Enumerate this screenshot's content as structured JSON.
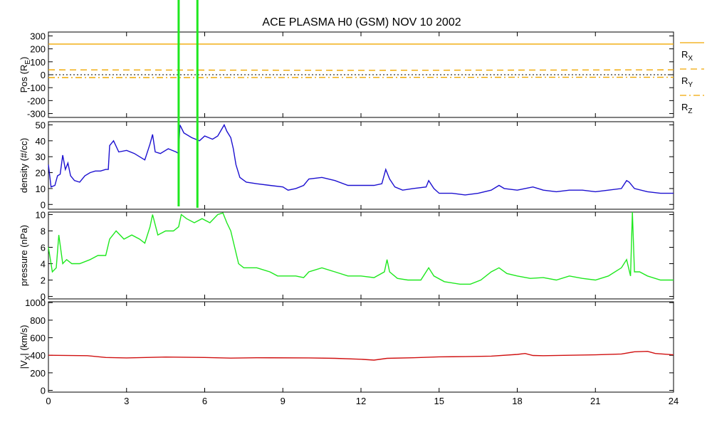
{
  "title": "ACE PLASMA H0 (GSM)   NOV 10 2002",
  "colors": {
    "position": "#f0a800",
    "density": "#1c10d0",
    "pressure": "#1ee81e",
    "velocity": "#d01010",
    "zero_line": "#000000"
  },
  "chart_data": [
    {
      "id": "pos",
      "type": "line",
      "ylabel_main": "Pos (R",
      "ylabel_sub": "E",
      "ylabel_end": ")",
      "ylim": [
        -330,
        330
      ],
      "yticks": [
        300,
        200,
        100,
        0,
        -100,
        -200,
        -300
      ],
      "legend_position": "right",
      "series": [
        {
          "name": "X",
          "label_main": "R",
          "label_sub": "X",
          "dash": "solid",
          "points": [
            [
              0,
              237
            ],
            [
              24,
              237
            ]
          ]
        },
        {
          "name": "Y",
          "label_main": "R",
          "label_sub": "Y",
          "dash": "dashed",
          "points": [
            [
              0,
              38
            ],
            [
              6,
              36
            ],
            [
              12,
              34
            ],
            [
              18,
              36
            ],
            [
              24,
              38
            ]
          ]
        },
        {
          "name": "Z",
          "label_main": "R",
          "label_sub": "Z",
          "dash": "dashdot",
          "points": [
            [
              0,
              -22
            ],
            [
              6,
              -22
            ],
            [
              12,
              -21
            ],
            [
              18,
              -20
            ],
            [
              24,
              -20
            ]
          ]
        }
      ]
    },
    {
      "id": "density",
      "type": "line",
      "ylabel_main": "density (#/cc)",
      "ylim": [
        -3,
        52
      ],
      "yticks": [
        50,
        40,
        30,
        20,
        10,
        0
      ],
      "series": [
        {
          "name": "density",
          "points": [
            [
              0,
              25
            ],
            [
              0.1,
              11
            ],
            [
              0.25,
              12
            ],
            [
              0.35,
              18
            ],
            [
              0.45,
              19
            ],
            [
              0.55,
              31
            ],
            [
              0.65,
              22
            ],
            [
              0.75,
              26
            ],
            [
              0.85,
              18
            ],
            [
              1.0,
              15
            ],
            [
              1.2,
              14
            ],
            [
              1.4,
              18
            ],
            [
              1.6,
              20
            ],
            [
              1.8,
              21
            ],
            [
              2.0,
              21
            ],
            [
              2.2,
              22
            ],
            [
              2.3,
              22
            ],
            [
              2.35,
              37
            ],
            [
              2.5,
              40
            ],
            [
              2.7,
              33
            ],
            [
              3.0,
              34
            ],
            [
              3.3,
              32
            ],
            [
              3.5,
              30
            ],
            [
              3.7,
              28
            ],
            [
              3.9,
              38
            ],
            [
              4.0,
              44
            ],
            [
              4.1,
              33
            ],
            [
              4.3,
              32
            ],
            [
              4.6,
              35
            ],
            [
              4.9,
              33
            ],
            [
              5.0,
              32
            ],
            [
              5.05,
              50
            ],
            [
              5.2,
              45
            ],
            [
              5.5,
              42
            ],
            [
              5.8,
              40
            ],
            [
              6.0,
              43
            ],
            [
              6.3,
              41
            ],
            [
              6.5,
              43
            ],
            [
              6.75,
              50
            ],
            [
              6.85,
              46
            ],
            [
              7.0,
              42
            ],
            [
              7.1,
              35
            ],
            [
              7.2,
              25
            ],
            [
              7.35,
              17
            ],
            [
              7.6,
              14
            ],
            [
              8.0,
              13
            ],
            [
              8.5,
              12
            ],
            [
              9.0,
              11
            ],
            [
              9.2,
              9
            ],
            [
              9.5,
              10
            ],
            [
              9.8,
              12
            ],
            [
              10.0,
              16
            ],
            [
              10.5,
              17
            ],
            [
              11.0,
              15
            ],
            [
              11.5,
              12
            ],
            [
              12.0,
              12
            ],
            [
              12.5,
              12
            ],
            [
              12.8,
              13
            ],
            [
              12.95,
              22
            ],
            [
              13.1,
              16
            ],
            [
              13.3,
              11
            ],
            [
              13.6,
              9
            ],
            [
              14.0,
              10
            ],
            [
              14.5,
              11
            ],
            [
              14.6,
              15
            ],
            [
              14.8,
              10
            ],
            [
              15.0,
              7
            ],
            [
              15.5,
              7
            ],
            [
              16.0,
              6
            ],
            [
              16.5,
              7
            ],
            [
              17.0,
              9
            ],
            [
              17.3,
              12
            ],
            [
              17.5,
              10
            ],
            [
              18.0,
              9
            ],
            [
              18.3,
              10
            ],
            [
              18.6,
              11
            ],
            [
              19.0,
              9
            ],
            [
              19.5,
              8
            ],
            [
              20.0,
              9
            ],
            [
              20.5,
              9
            ],
            [
              21.0,
              8
            ],
            [
              21.5,
              9
            ],
            [
              22.0,
              10
            ],
            [
              22.2,
              15
            ],
            [
              22.3,
              14
            ],
            [
              22.5,
              10
            ],
            [
              23.0,
              8
            ],
            [
              23.5,
              7
            ],
            [
              24.0,
              7
            ]
          ]
        }
      ]
    },
    {
      "id": "pressure",
      "type": "line",
      "ylabel_main": "pressure (nPa)",
      "ylim": [
        -0.3,
        10.3
      ],
      "yticks": [
        10,
        8,
        6,
        4,
        2,
        0
      ],
      "series": [
        {
          "name": "pressure",
          "points": [
            [
              0,
              6
            ],
            [
              0.15,
              3
            ],
            [
              0.3,
              3.5
            ],
            [
              0.4,
              7.5
            ],
            [
              0.55,
              4
            ],
            [
              0.7,
              4.5
            ],
            [
              0.9,
              4
            ],
            [
              1.2,
              4
            ],
            [
              1.6,
              4.5
            ],
            [
              1.9,
              5
            ],
            [
              2.2,
              5
            ],
            [
              2.35,
              7
            ],
            [
              2.6,
              8
            ],
            [
              2.9,
              7
            ],
            [
              3.2,
              7.5
            ],
            [
              3.5,
              7
            ],
            [
              3.7,
              6.5
            ],
            [
              3.9,
              8.5
            ],
            [
              4.0,
              10
            ],
            [
              4.2,
              7.5
            ],
            [
              4.5,
              8
            ],
            [
              4.8,
              8
            ],
            [
              5.0,
              8.5
            ],
            [
              5.1,
              10
            ],
            [
              5.3,
              9.5
            ],
            [
              5.6,
              9
            ],
            [
              5.9,
              9.5
            ],
            [
              6.2,
              9
            ],
            [
              6.5,
              10
            ],
            [
              6.7,
              10.2
            ],
            [
              6.85,
              9
            ],
            [
              7.0,
              8
            ],
            [
              7.15,
              6
            ],
            [
              7.3,
              4
            ],
            [
              7.5,
              3.5
            ],
            [
              8.0,
              3.5
            ],
            [
              8.5,
              3
            ],
            [
              8.8,
              2.5
            ],
            [
              9.2,
              2.5
            ],
            [
              9.5,
              2.5
            ],
            [
              9.8,
              2.3
            ],
            [
              10.0,
              3
            ],
            [
              10.5,
              3.5
            ],
            [
              11.0,
              3
            ],
            [
              11.5,
              2.5
            ],
            [
              12.0,
              2.5
            ],
            [
              12.5,
              2.3
            ],
            [
              12.9,
              3
            ],
            [
              13.0,
              4.5
            ],
            [
              13.1,
              3
            ],
            [
              13.4,
              2.2
            ],
            [
              13.8,
              2
            ],
            [
              14.3,
              2
            ],
            [
              14.6,
              3.5
            ],
            [
              14.8,
              2.5
            ],
            [
              15.2,
              1.8
            ],
            [
              15.8,
              1.5
            ],
            [
              16.2,
              1.5
            ],
            [
              16.6,
              2
            ],
            [
              17.0,
              3
            ],
            [
              17.3,
              3.5
            ],
            [
              17.6,
              2.8
            ],
            [
              18.0,
              2.5
            ],
            [
              18.5,
              2.2
            ],
            [
              19.0,
              2.3
            ],
            [
              19.5,
              2
            ],
            [
              20.0,
              2.5
            ],
            [
              20.5,
              2.2
            ],
            [
              21.0,
              2
            ],
            [
              21.5,
              2.5
            ],
            [
              22.0,
              3.5
            ],
            [
              22.2,
              4.5
            ],
            [
              22.35,
              2.5
            ],
            [
              22.42,
              10.3
            ],
            [
              22.5,
              3
            ],
            [
              22.7,
              3
            ],
            [
              23.0,
              2.5
            ],
            [
              23.5,
              2
            ],
            [
              24.0,
              2
            ]
          ]
        }
      ]
    },
    {
      "id": "velocity",
      "type": "line",
      "ylabel_main": "|V",
      "ylabel_sub": "X",
      "ylabel_end": "| (km/s)",
      "ylim": [
        -20,
        1010
      ],
      "yticks": [
        1000,
        800,
        600,
        400,
        200,
        0
      ],
      "series": [
        {
          "name": "Vx",
          "points": [
            [
              0,
              400
            ],
            [
              1.5,
              395
            ],
            [
              2.2,
              375
            ],
            [
              3,
              370
            ],
            [
              4.5,
              380
            ],
            [
              6,
              375
            ],
            [
              7,
              368
            ],
            [
              8,
              372
            ],
            [
              10,
              370
            ],
            [
              11,
              365
            ],
            [
              12,
              355
            ],
            [
              12.5,
              345
            ],
            [
              13,
              365
            ],
            [
              14,
              372
            ],
            [
              15,
              382
            ],
            [
              16,
              385
            ],
            [
              17,
              390
            ],
            [
              18,
              410
            ],
            [
              18.3,
              420
            ],
            [
              18.6,
              398
            ],
            [
              19,
              395
            ],
            [
              20,
              400
            ],
            [
              21,
              405
            ],
            [
              22,
              415
            ],
            [
              22.5,
              440
            ],
            [
              23,
              445
            ],
            [
              23.3,
              420
            ],
            [
              24,
              405
            ]
          ]
        }
      ]
    }
  ],
  "spikes": {
    "color": "#1ee81e",
    "x": [
      5.0,
      5.72
    ],
    "labels": [
      ""
    ]
  },
  "xaxis": {
    "xlim": [
      0,
      24
    ],
    "ticks": [
      "0",
      "3",
      "6",
      "9",
      "12",
      "15",
      "18",
      "21",
      "24"
    ]
  }
}
